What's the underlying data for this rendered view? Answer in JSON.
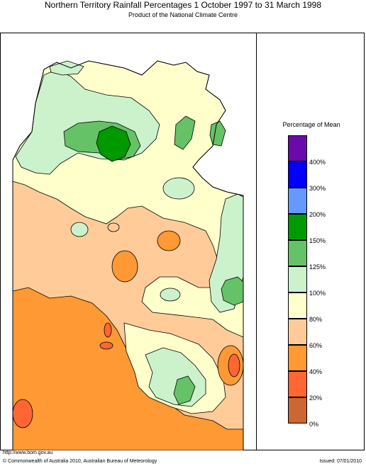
{
  "header": {
    "title": "Northern Territory Rainfall Percentages 1 October 1997 to 31 March 1998",
    "subtitle": "Product of the National Climate Centre"
  },
  "legend": {
    "title": "Percentage of Mean",
    "classes": [
      {
        "label": "400%",
        "color": "#6a0aab"
      },
      {
        "label": "300%",
        "color": "#0000ff"
      },
      {
        "label": "200%",
        "color": "#6699ff"
      },
      {
        "label": "150%",
        "color": "#009900"
      },
      {
        "label": "125%",
        "color": "#66c266"
      },
      {
        "label": "100%",
        "color": "#ccf2cc"
      },
      {
        "label": "80%",
        "color": "#ffffcc"
      },
      {
        "label": "60%",
        "color": "#ffcc99"
      },
      {
        "label": "40%",
        "color": "#ff9933"
      },
      {
        "label": "20%",
        "color": "#ff6633"
      },
      {
        "label": "0%",
        "color": "#cc6633"
      }
    ]
  },
  "footer": {
    "url": "http://www.bom.gov.au",
    "copyright": "© Commonwealth of Australia 2010, Australian Bureau of Meteorology",
    "issued": "Issued: 07/01/2010"
  }
}
